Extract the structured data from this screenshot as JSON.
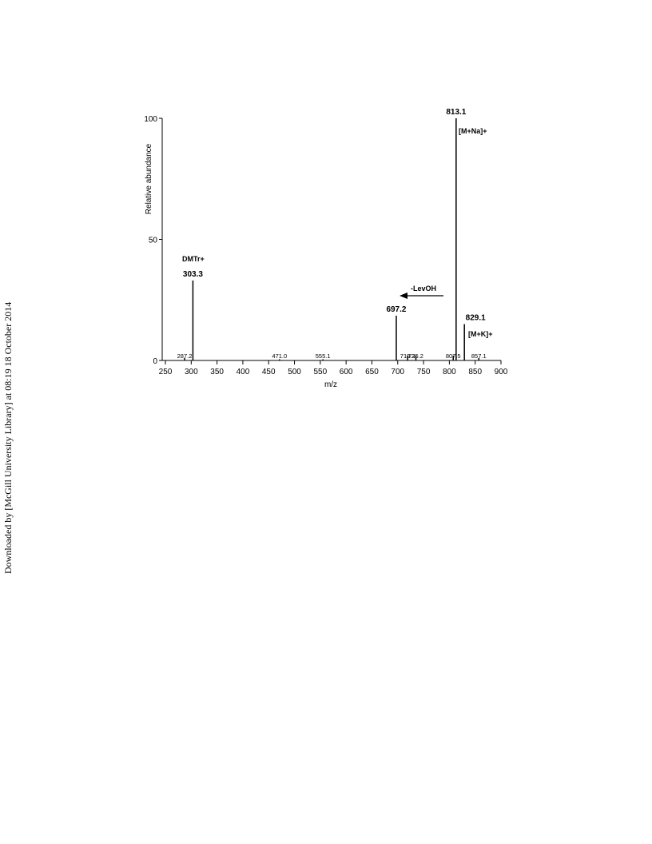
{
  "side_note": "Downloaded by [McGill University Library] at 08:19 18 October 2014",
  "chart_data": {
    "type": "stem",
    "xlabel": "m/z",
    "ylabel": "Relative abundance",
    "x": [
      287.2,
      303.3,
      471.0,
      555.1,
      697.2,
      719.2,
      735.2,
      807.5,
      813.1,
      829.1,
      857.1
    ],
    "x_labels": [
      "287.2",
      "303.3",
      "471.0",
      "555.1",
      "697.2",
      "719.2",
      "735.2",
      "807.5",
      "813.1",
      "829.1",
      "857.1"
    ],
    "values": [
      1,
      33,
      0.5,
      0.5,
      18.5,
      2,
      2,
      2,
      100,
      15,
      1
    ],
    "color": "#000000",
    "xlim": [
      250,
      900
    ],
    "xticks": [
      250,
      300,
      350,
      400,
      450,
      500,
      550,
      600,
      650,
      700,
      750,
      800,
      850,
      900
    ],
    "ylim": [
      0,
      100
    ],
    "yticks": [
      0,
      50,
      100
    ],
    "annotations": [
      "DMTr+",
      "[M+Na]+",
      "[M+K]+",
      "-LevOH"
    ]
  }
}
